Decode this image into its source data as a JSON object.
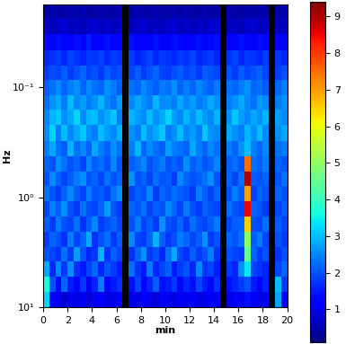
{
  "chart_data": {
    "type": "heatmap",
    "x_label": "min",
    "y_label": "Hz",
    "log": "y",
    "color": "jet",
    "xlim": [
      0,
      20
    ],
    "ylim": [
      10,
      0.0176
    ],
    "xticks": [
      0,
      2,
      4,
      6,
      8,
      10,
      12,
      14,
      16,
      18,
      20
    ],
    "yticks": [
      {
        "value": 10,
        "label": "10¹"
      },
      {
        "value": 1,
        "label": "10⁰"
      },
      {
        "value": 0.1,
        "label": "10⁻¹"
      }
    ],
    "x_edges": [
      0,
      0.5,
      1,
      1.5,
      2,
      2.5,
      3,
      3.5,
      4,
      4.5,
      5,
      5.5,
      6,
      6.5,
      7,
      7.5,
      8,
      8.5,
      9,
      9.5,
      10,
      10.5,
      11,
      11.5,
      12,
      12.5,
      13,
      13.5,
      14,
      14.5,
      15,
      15.5,
      16,
      16.5,
      17,
      17.5,
      18,
      18.5,
      19,
      19.5,
      20
    ],
    "y_edges": [
      10,
      7.28,
      5.3,
      3.86,
      2.81,
      2.05,
      1.49,
      1.08,
      0.79,
      0.58,
      0.42,
      0.31,
      0.22,
      0.16,
      0.118,
      0.086,
      0.063,
      0.046,
      0.033,
      0.024,
      0.0176
    ],
    "cells": [
      [
        3.2,
        1.2,
        1.0,
        0.8,
        1.0,
        0.9,
        1.1,
        0.8,
        1.0,
        1.2,
        0.9,
        1.0,
        1.1,
        null,
        1.0,
        0.9,
        1.2,
        1.0,
        0.8,
        1.1,
        1.0,
        0.9,
        1.1,
        1.0,
        1.2,
        0.9,
        1.0,
        1.1,
        1.0,
        null,
        0.9,
        1.2,
        1.0,
        1.4,
        1.1,
        0.9,
        1.0,
        null,
        2.8,
        1.2
      ],
      [
        3.6,
        2.0,
        1.4,
        2.2,
        1.5,
        1.3,
        1.8,
        1.2,
        1.6,
        2.4,
        1.3,
        1.5,
        1.7,
        null,
        1.4,
        1.9,
        1.3,
        1.6,
        2.1,
        1.4,
        1.5,
        1.8,
        1.3,
        1.6,
        1.4,
        1.9,
        1.5,
        1.3,
        1.7,
        null,
        1.4,
        1.6,
        1.8,
        2.0,
        1.5,
        1.3,
        1.6,
        null,
        3.0,
        1.8
      ],
      [
        2.8,
        1.6,
        2.5,
        1.8,
        2.6,
        1.7,
        1.5,
        1.9,
        2.2,
        1.6,
        2.0,
        1.8,
        1.5,
        null,
        2.3,
        1.7,
        1.5,
        2.4,
        1.6,
        1.9,
        2.1,
        1.5,
        1.8,
        2.0,
        1.6,
        2.5,
        1.7,
        1.9,
        1.5,
        null,
        1.8,
        1.6,
        2.6,
        3.4,
        1.9,
        1.7,
        1.6,
        null,
        1.9,
        2.2
      ],
      [
        2.0,
        1.9,
        1.7,
        2.3,
        1.8,
        2.7,
        2.0,
        1.6,
        1.8,
        2.9,
        1.7,
        2.1,
        1.9,
        null,
        1.7,
        2.2,
        2.6,
        1.8,
        2.0,
        1.6,
        2.3,
        2.8,
        1.9,
        1.7,
        2.1,
        1.8,
        2.0,
        2.4,
        1.7,
        null,
        2.0,
        1.9,
        1.8,
        4.5,
        2.2,
        1.8,
        2.0,
        null,
        1.7,
        2.0
      ],
      [
        1.8,
        2.2,
        2.0,
        1.7,
        2.4,
        1.9,
        2.2,
        2.8,
        1.7,
        2.0,
        2.3,
        1.8,
        2.1,
        null,
        2.5,
        1.9,
        1.8,
        2.2,
        2.9,
        2.1,
        1.8,
        2.0,
        2.4,
        2.2,
        1.9,
        2.1,
        2.6,
        1.8,
        2.0,
        null,
        2.2,
        2.0,
        2.3,
        5.0,
        2.1,
        2.4,
        1.9,
        null,
        2.0,
        1.8
      ],
      [
        2.1,
        1.8,
        2.4,
        2.0,
        1.9,
        2.3,
        1.7,
        2.1,
        2.5,
        1.8,
        2.0,
        2.2,
        1.9,
        null,
        2.0,
        2.4,
        1.9,
        2.1,
        1.8,
        2.6,
        2.0,
        1.9,
        2.2,
        1.8,
        2.3,
        2.0,
        1.9,
        2.1,
        2.4,
        null,
        1.9,
        2.1,
        2.2,
        6.5,
        2.0,
        1.9,
        2.3,
        null,
        2.1,
        1.9
      ],
      [
        1.9,
        2.4,
        2.1,
        2.6,
        2.0,
        1.8,
        2.3,
        2.0,
        1.9,
        2.2,
        2.7,
        2.0,
        1.8,
        null,
        2.2,
        2.0,
        2.3,
        1.9,
        2.1,
        2.0,
        2.5,
        2.2,
        1.9,
        2.4,
        2.0,
        1.8,
        2.2,
        2.0,
        1.9,
        null,
        2.3,
        2.0,
        1.9,
        8.5,
        2.2,
        2.0,
        1.8,
        null,
        1.9,
        2.1
      ],
      [
        2.3,
        2.0,
        1.8,
        2.2,
        2.5,
        2.1,
        1.9,
        2.4,
        2.0,
        2.1,
        1.9,
        2.3,
        2.6,
        null,
        1.9,
        2.1,
        2.0,
        2.5,
        1.8,
        2.2,
        2.0,
        2.3,
        2.1,
        2.0,
        1.8,
        2.4,
        2.1,
        1.9,
        2.2,
        null,
        2.0,
        2.4,
        2.1,
        7.0,
        1.9,
        2.2,
        2.0,
        null,
        2.2,
        2.0
      ],
      [
        2.0,
        2.5,
        2.2,
        1.9,
        2.1,
        2.4,
        2.6,
        2.0,
        2.2,
        1.9,
        2.3,
        2.0,
        2.2,
        null,
        2.6,
        2.0,
        2.2,
        1.9,
        2.3,
        2.0,
        2.1,
        1.8,
        2.5,
        2.2,
        2.0,
        2.1,
        2.3,
        2.6,
        2.0,
        null,
        2.2,
        1.9,
        2.3,
        9.0,
        2.1,
        2.0,
        2.2,
        null,
        2.0,
        2.3
      ],
      [
        2.2,
        2.0,
        2.6,
        2.3,
        2.0,
        2.2,
        1.9,
        2.5,
        2.1,
        2.3,
        2.0,
        2.5,
        2.0,
        null,
        2.1,
        2.3,
        2.5,
        2.0,
        2.2,
        2.4,
        2.0,
        2.2,
        2.0,
        2.6,
        2.1,
        2.3,
        2.0,
        2.2,
        2.5,
        null,
        2.1,
        2.3,
        2.0,
        7.5,
        2.3,
        2.1,
        2.4,
        null,
        2.2,
        2.0
      ],
      [
        2.4,
        2.8,
        2.3,
        2.1,
        2.9,
        2.3,
        2.5,
        2.2,
        2.8,
        2.4,
        2.2,
        2.6,
        2.3,
        null,
        2.4,
        2.9,
        2.2,
        2.5,
        2.3,
        2.1,
        2.7,
        2.4,
        2.3,
        2.2,
        2.8,
        2.4,
        2.2,
        2.5,
        2.3,
        null,
        2.4,
        2.2,
        2.6,
        3.0,
        2.4,
        2.2,
        2.5,
        null,
        2.3,
        2.4
      ],
      [
        2.6,
        3.2,
        2.4,
        3.0,
        2.5,
        2.8,
        3.1,
        2.6,
        2.4,
        3.0,
        2.7,
        2.5,
        2.9,
        null,
        2.6,
        2.4,
        3.0,
        2.6,
        2.8,
        3.1,
        2.4,
        2.6,
        3.0,
        2.5,
        2.7,
        2.4,
        3.1,
        2.6,
        2.5,
        null,
        2.8,
        2.6,
        2.4,
        2.9,
        2.6,
        3.0,
        2.5,
        null,
        2.6,
        2.8
      ],
      [
        2.5,
        2.9,
        3.1,
        2.6,
        2.8,
        3.2,
        2.5,
        2.9,
        3.0,
        2.6,
        2.8,
        3.1,
        2.4,
        null,
        2.9,
        2.7,
        2.5,
        3.0,
        2.6,
        2.8,
        3.2,
        2.7,
        2.5,
        2.9,
        2.6,
        3.0,
        2.7,
        2.5,
        2.9,
        null,
        2.6,
        3.1,
        2.7,
        2.5,
        2.8,
        2.6,
        2.9,
        null,
        2.7,
        2.5
      ],
      [
        2.3,
        2.6,
        2.8,
        2.4,
        3.0,
        2.5,
        2.7,
        2.4,
        2.6,
        2.9,
        2.5,
        2.3,
        2.7,
        null,
        2.5,
        2.8,
        2.6,
        2.4,
        2.9,
        2.5,
        2.6,
        2.4,
        2.8,
        2.5,
        2.7,
        2.4,
        2.5,
        2.8,
        2.6,
        null,
        2.4,
        2.6,
        2.8,
        2.5,
        2.3,
        2.7,
        2.5,
        null,
        2.4,
        2.6
      ],
      [
        2.1,
        2.3,
        2.5,
        2.2,
        2.4,
        2.6,
        2.2,
        2.5,
        2.3,
        2.2,
        2.6,
        2.4,
        2.1,
        null,
        2.3,
        2.2,
        2.5,
        2.3,
        2.1,
        2.4,
        2.3,
        2.6,
        2.2,
        2.4,
        2.2,
        2.5,
        2.3,
        2.1,
        2.4,
        null,
        2.3,
        2.2,
        2.4,
        2.6,
        2.2,
        2.3,
        2.1,
        null,
        2.2,
        2.4
      ],
      [
        1.8,
        2.0,
        1.9,
        2.1,
        1.8,
        2.0,
        2.2,
        1.9,
        2.0,
        1.8,
        2.1,
        1.9,
        2.0,
        null,
        1.9,
        2.1,
        1.8,
        2.0,
        2.2,
        1.9,
        1.8,
        2.0,
        2.1,
        1.9,
        2.0,
        1.8,
        2.1,
        2.0,
        1.9,
        null,
        2.0,
        1.8,
        2.1,
        1.9,
        2.0,
        2.2,
        1.9,
        null,
        1.8,
        2.0
      ],
      [
        1.6,
        1.7,
        1.8,
        1.6,
        1.9,
        1.7,
        1.6,
        1.8,
        1.7,
        1.9,
        1.6,
        1.8,
        1.7,
        null,
        1.8,
        1.6,
        1.7,
        1.9,
        1.6,
        1.8,
        1.7,
        1.6,
        1.8,
        1.7,
        1.9,
        1.6,
        1.7,
        1.8,
        1.6,
        null,
        1.7,
        1.9,
        1.6,
        1.8,
        1.7,
        1.6,
        1.8,
        null,
        1.7,
        1.6
      ],
      [
        1.3,
        1.2,
        1.4,
        1.3,
        1.2,
        1.4,
        1.3,
        1.5,
        1.2,
        1.3,
        1.4,
        1.2,
        1.3,
        null,
        1.4,
        1.2,
        1.3,
        1.2,
        1.4,
        1.3,
        1.2,
        1.4,
        1.3,
        1.2,
        1.3,
        1.4,
        1.2,
        1.3,
        1.4,
        null,
        1.2,
        1.3,
        1.4,
        1.3,
        1.2,
        1.4,
        1.3,
        null,
        1.2,
        1.3
      ],
      [
        0.7,
        0.6,
        0.7,
        0.8,
        0.6,
        0.7,
        0.6,
        0.7,
        0.8,
        0.6,
        0.7,
        0.6,
        0.7,
        null,
        0.6,
        0.7,
        0.8,
        0.6,
        0.7,
        0.6,
        0.7,
        0.8,
        0.6,
        0.7,
        0.6,
        0.7,
        0.6,
        0.8,
        0.7,
        null,
        0.6,
        0.7,
        0.6,
        0.7,
        0.8,
        0.6,
        0.7,
        null,
        0.6,
        0.7
      ],
      [
        0.4,
        0.5,
        0.4,
        0.4,
        0.5,
        0.4,
        0.5,
        0.4,
        0.4,
        0.5,
        0.4,
        0.4,
        0.5,
        null,
        0.4,
        0.5,
        0.4,
        0.4,
        0.5,
        0.4,
        0.4,
        0.5,
        0.4,
        0.5,
        0.4,
        0.4,
        0.5,
        0.4,
        0.4,
        null,
        0.5,
        0.4,
        0.4,
        0.5,
        0.4,
        0.5,
        0.4,
        null,
        0.4,
        0.5
      ]
    ],
    "colorbar": {
      "range": [
        0.1,
        9.4
      ],
      "ticks": [
        1,
        2,
        3,
        4,
        5,
        6,
        7,
        8,
        9
      ]
    }
  }
}
